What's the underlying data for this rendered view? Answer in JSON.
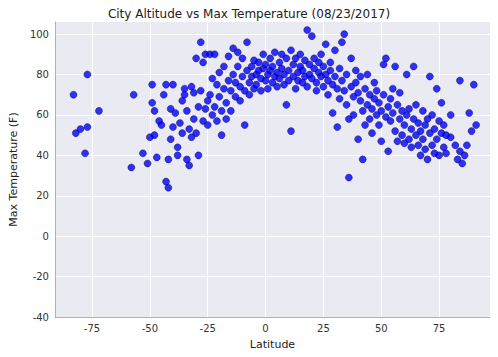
{
  "chart_data": {
    "type": "scatter",
    "title": "City Altitude vs Max Temperature (08/23/2017)",
    "x_label": "Latitude",
    "y_label": "Max Temperature (F)",
    "color": "#0000ff",
    "marker": "circle",
    "grid": true,
    "xlim": [
      -91,
      97
    ],
    "xticks": [
      -75,
      -50,
      -25,
      0,
      25,
      50,
      75
    ],
    "ylim": [
      -40,
      106
    ],
    "yticks": [
      -40,
      -20,
      0,
      20,
      40,
      60,
      80,
      100
    ],
    "x": [
      -83,
      -82,
      -80,
      -78,
      -77,
      -77,
      -72,
      -58,
      -57,
      -53,
      -51,
      -50,
      -49,
      -49,
      -48,
      -48,
      -47,
      -46,
      -45,
      -44,
      -43,
      -43,
      -42,
      -42,
      -41,
      -41,
      -40,
      -40,
      -39,
      -38,
      -38,
      -37,
      -36,
      -36,
      -35,
      -35,
      -34,
      -34,
      -33,
      -33,
      -32,
      -32,
      -31,
      -31,
      -30,
      -30,
      -29,
      -29,
      -28,
      -28,
      -27,
      -27,
      -26,
      -26,
      -25,
      -25,
      -24,
      -24,
      -23,
      -23,
      -22,
      -22,
      -21,
      -21,
      -20,
      -20,
      -19,
      -19,
      -18,
      -18,
      -17,
      -17,
      -16,
      -16,
      -15,
      -15,
      -14,
      -14,
      -13,
      -13,
      -12,
      -12,
      -11,
      -11,
      -10,
      -10,
      -9,
      -9,
      -8,
      -8,
      -7,
      -7,
      -6,
      -6,
      -5,
      -5,
      -4,
      -4,
      -3,
      -3,
      -2,
      -2,
      -1,
      -1,
      0,
      0,
      1,
      1,
      2,
      2,
      3,
      3,
      4,
      4,
      5,
      5,
      6,
      6,
      7,
      7,
      8,
      8,
      9,
      9,
      10,
      10,
      11,
      11,
      12,
      12,
      13,
      13,
      14,
      14,
      15,
      15,
      16,
      16,
      17,
      17,
      18,
      18,
      19,
      19,
      20,
      20,
      21,
      21,
      22,
      22,
      23,
      23,
      24,
      24,
      25,
      25,
      26,
      26,
      27,
      27,
      28,
      28,
      29,
      29,
      30,
      30,
      31,
      31,
      32,
      32,
      33,
      33,
      34,
      34,
      35,
      35,
      36,
      36,
      37,
      37,
      38,
      38,
      39,
      39,
      40,
      40,
      41,
      41,
      42,
      42,
      43,
      43,
      44,
      44,
      45,
      45,
      46,
      46,
      47,
      47,
      48,
      48,
      49,
      49,
      50,
      50,
      51,
      51,
      52,
      52,
      53,
      53,
      54,
      54,
      55,
      55,
      56,
      56,
      57,
      57,
      58,
      58,
      59,
      59,
      60,
      60,
      61,
      61,
      62,
      62,
      63,
      63,
      64,
      64,
      65,
      65,
      66,
      66,
      67,
      67,
      68,
      68,
      69,
      69,
      70,
      70,
      71,
      71,
      72,
      72,
      73,
      73,
      74,
      74,
      75,
      75,
      76,
      76,
      77,
      77,
      78,
      78,
      80,
      80,
      82,
      83,
      84,
      84,
      85,
      86,
      87,
      88,
      89,
      90,
      91
    ],
    "values": [
      70,
      51,
      53,
      41,
      80,
      54,
      62,
      34,
      70,
      41,
      36,
      49,
      75,
      66,
      62,
      50,
      39,
      57,
      55,
      70,
      75,
      27,
      24,
      38,
      63,
      48,
      75,
      54,
      61,
      44,
      40,
      56,
      51,
      67,
      73,
      70,
      62,
      38,
      35,
      53,
      74,
      49,
      58,
      71,
      88,
      51,
      40,
      64,
      96,
      72,
      57,
      86,
      63,
      90,
      67,
      55,
      90,
      70,
      78,
      60,
      90,
      64,
      57,
      75,
      81,
      69,
      62,
      50,
      73,
      84,
      66,
      58,
      77,
      89,
      72,
      62,
      93,
      80,
      69,
      76,
      91,
      84,
      74,
      67,
      79,
      88,
      55,
      72,
      96,
      82,
      76,
      70,
      84,
      79,
      87,
      73,
      80,
      75,
      86,
      82,
      78,
      72,
      83,
      90,
      77,
      85,
      80,
      73,
      88,
      82,
      76,
      84,
      91,
      79,
      81,
      74,
      86,
      78,
      90,
      83,
      75,
      80,
      88,
      65,
      82,
      77,
      92,
      52,
      79,
      85,
      73,
      88,
      81,
      77,
      84,
      90,
      76,
      82,
      87,
      79,
      102,
      74,
      85,
      80,
      99,
      78,
      83,
      88,
      76,
      72,
      86,
      81,
      79,
      90,
      74,
      84,
      95,
      80,
      77,
      70,
      86,
      82,
      75,
      61,
      79,
      92,
      73,
      54,
      83,
      68,
      96,
      77,
      72,
      100,
      65,
      80,
      58,
      29,
      74,
      88,
      69,
      60,
      82,
      76,
      71,
      48,
      67,
      79,
      62,
      38,
      73,
      55,
      65,
      80,
      58,
      70,
      63,
      51,
      76,
      68,
      60,
      72,
      55,
      66,
      62,
      47,
      85,
      70,
      59,
      88,
      64,
      42,
      68,
      57,
      73,
      61,
      52,
      84,
      65,
      47,
      58,
      71,
      62,
      50,
      46,
      55,
      80,
      60,
      48,
      63,
      53,
      44,
      84,
      58,
      50,
      65,
      45,
      56,
      52,
      40,
      62,
      48,
      55,
      43,
      38,
      58,
      51,
      79,
      45,
      60,
      53,
      41,
      73,
      48,
      57,
      40,
      66,
      51,
      44,
      55,
      50,
      41,
      60,
      49,
      45,
      38,
      77,
      42,
      36,
      40,
      45,
      61,
      52,
      75,
      55
    ]
  }
}
